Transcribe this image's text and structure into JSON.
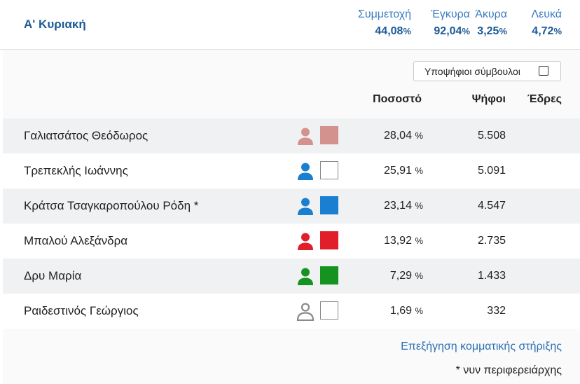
{
  "round": {
    "title": "Α' Κυριακή"
  },
  "stats": [
    {
      "label": "Συμμετοχή",
      "value": "44,08",
      "unit": "%"
    },
    {
      "label": "Έγκυρα",
      "value": "92,04",
      "unit": "%"
    },
    {
      "label": "Άκυρα",
      "value": "3,25",
      "unit": "%"
    },
    {
      "label": "Λευκά",
      "value": "4,72",
      "unit": "%"
    }
  ],
  "toggle": {
    "label": "Υποψήφιοι σύμβουλοι",
    "checked": false
  },
  "columns": {
    "percent": "Ποσοστό",
    "votes": "Ψήφοι",
    "seats": "Έδρες"
  },
  "candidates": [
    {
      "name": "Γαλιατσάτος Θεόδωρος",
      "percent": "28,04",
      "percent_unit": "%",
      "votes": "5.508",
      "seats": "",
      "color": "#d4928f",
      "swatch_filled": true,
      "icon": "person-icon"
    },
    {
      "name": "Τρεπεκλής Ιωάννης",
      "percent": "25,91",
      "percent_unit": "%",
      "votes": "5.091",
      "seats": "",
      "color": "#1a7fd0",
      "swatch_filled": false,
      "icon": "person-icon"
    },
    {
      "name": "Κράτσα Τσαγκαροπούλου Ρόδη *",
      "percent": "23,14",
      "percent_unit": "%",
      "votes": "4.547",
      "seats": "",
      "color": "#1a7fd0",
      "swatch_filled": true,
      "icon": "person-icon"
    },
    {
      "name": "Μπαλού Αλεξάνδρα",
      "percent": "13,92",
      "percent_unit": "%",
      "votes": "2.735",
      "seats": "",
      "color": "#e01f2a",
      "swatch_filled": true,
      "icon": "person-icon"
    },
    {
      "name": "Δρυ Μαρία",
      "percent": "7,29",
      "percent_unit": "%",
      "votes": "1.433",
      "seats": "",
      "color": "#15921f",
      "swatch_filled": true,
      "icon": "person-icon"
    },
    {
      "name": "Ραιδεστινός Γεώργιος",
      "percent": "1,69",
      "percent_unit": "%",
      "votes": "332",
      "seats": "",
      "color": "#8a8a8a",
      "swatch_filled": false,
      "icon": "person-outline-icon"
    }
  ],
  "footer": {
    "link": "Επεξήγηση κομματικής στήριξης",
    "note": "* νυν περιφερειάρχης"
  }
}
